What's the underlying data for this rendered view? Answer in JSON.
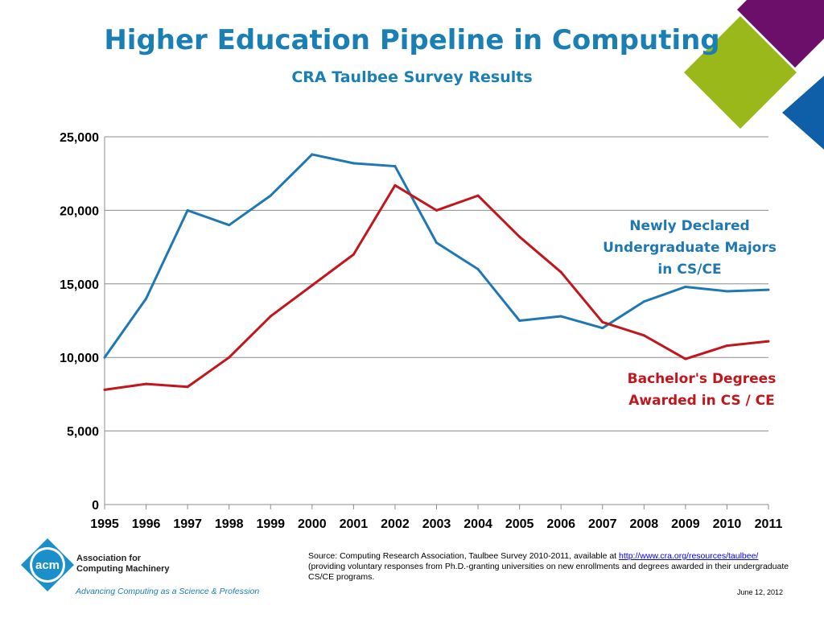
{
  "slide": {
    "title": "Higher Education Pipeline in Computing",
    "subtitle": "CRA Taulbee Survey Results",
    "date": "June 12, 2012"
  },
  "logo": {
    "mark": "acm",
    "org_line1": "Association for",
    "org_line2": "Computing Machinery",
    "tagline": "Advancing Computing as a Science & Profession"
  },
  "source": {
    "prefix": "Source: Computing Research Association, Taulbee Survey 2010-2011, available at ",
    "link": "http://www.cra.org/resources/taulbee/",
    "suffix": "(providing voluntary responses from Ph.D.-granting universities on new enrollments and degrees awarded in their undergraduate CS/CE programs."
  },
  "colors": {
    "title": "#1a7fb5",
    "majors_line": "#1f78b4",
    "degrees_line": "#c0161c",
    "deco_purple": "#6b0f6b",
    "deco_green": "#9bb81a",
    "deco_blue": "#0f5fa8"
  },
  "chart_data": {
    "type": "line",
    "title": "",
    "x": [
      "1995",
      "1996",
      "1997",
      "1998",
      "1999",
      "2000",
      "2001",
      "2002",
      "2003",
      "2004",
      "2005",
      "2006",
      "2007",
      "2008",
      "2009",
      "2010",
      "2011"
    ],
    "ylim": [
      0,
      25000
    ],
    "yticks": [
      "0",
      "5,000",
      "10,000",
      "15,000",
      "20,000",
      "25,000"
    ],
    "ytick_values": [
      0,
      5000,
      10000,
      15000,
      20000,
      25000
    ],
    "grid": true,
    "series": [
      {
        "name": "Newly Declared Undergraduate Majors in CS/CE",
        "label_lines": [
          "Newly Declared",
          "Undergraduate  Majors",
          "in CS/CE"
        ],
        "color": "#1f78b4",
        "values": [
          10000,
          14000,
          20000,
          19000,
          21000,
          23800,
          23200,
          23000,
          17800,
          16000,
          12500,
          12800,
          12000,
          13800,
          14800,
          14500,
          14600
        ]
      },
      {
        "name": "Bachelor's Degrees Awarded in CS / CE",
        "label_lines": [
          "Bachelor's Degrees",
          "Awarded in CS / CE"
        ],
        "color": "#c0161c",
        "values": [
          7800,
          8200,
          8000,
          10000,
          12800,
          14900,
          17000,
          21700,
          20000,
          21000,
          18200,
          15800,
          12400,
          11500,
          9900,
          10800,
          11100
        ]
      }
    ]
  }
}
